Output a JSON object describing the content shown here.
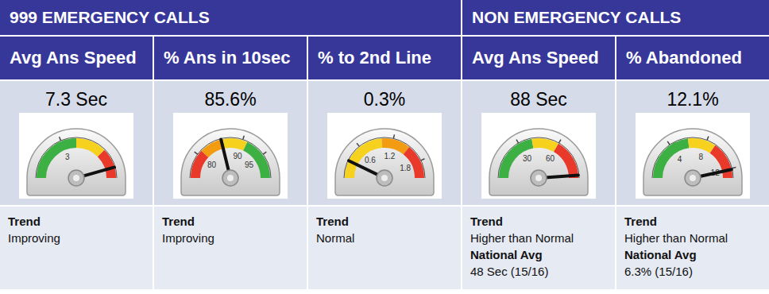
{
  "chart_data": [
    {
      "type": "gauge",
      "group": "999 EMERGENCY CALLS",
      "title": "Avg Ans Speed",
      "values": [
        7.3
      ],
      "value_labels": [
        "7.3 Sec"
      ],
      "ylim": [
        0,
        8
      ],
      "yticks": [
        3
      ],
      "bands": [
        {
          "from": 0,
          "to": 4,
          "color": "#3cb043"
        },
        {
          "from": 4,
          "to": 6,
          "color": "#f6d21e"
        },
        {
          "from": 6,
          "to": 8,
          "color": "#e8392b"
        }
      ],
      "annotations": [
        {
          "label": "Trend",
          "text": "Improving"
        }
      ]
    },
    {
      "type": "gauge",
      "group": "999 EMERGENCY CALLS",
      "title": "% Ans in 10sec",
      "values": [
        85.6
      ],
      "value_labels": [
        "85.6%"
      ],
      "ylim": [
        75,
        100
      ],
      "yticks": [
        80,
        90,
        95
      ],
      "bands": [
        {
          "from": 75,
          "to": 81,
          "color": "#e8392b"
        },
        {
          "from": 81,
          "to": 86,
          "color": "#f39c12"
        },
        {
          "from": 86,
          "to": 91,
          "color": "#f6d21e"
        },
        {
          "from": 91,
          "to": 100,
          "color": "#3cb043"
        }
      ],
      "annotations": [
        {
          "label": "Trend",
          "text": "Improving"
        }
      ]
    },
    {
      "type": "gauge",
      "group": "999 EMERGENCY CALLS",
      "title": "% to 2nd Line",
      "values": [
        0.3
      ],
      "value_labels": [
        "0.3%"
      ],
      "ylim": [
        0,
        2.1
      ],
      "yticks": [
        0.6,
        1.2,
        1.8
      ],
      "bands": [
        {
          "from": 0,
          "to": 1.0,
          "color": "#f6d21e"
        },
        {
          "from": 1.0,
          "to": 1.5,
          "color": "#f39c12"
        },
        {
          "from": 1.5,
          "to": 2.1,
          "color": "#e8392b"
        }
      ],
      "annotations": [
        {
          "label": "Trend",
          "text": "Normal"
        }
      ]
    },
    {
      "type": "gauge",
      "group": "NON EMERGENCY CALLS",
      "title": "Avg Ans Speed",
      "values": [
        88
      ],
      "value_labels": [
        "88 Sec"
      ],
      "ylim": [
        0,
        90
      ],
      "yticks": [
        30,
        60
      ],
      "bands": [
        {
          "from": 0,
          "to": 40,
          "color": "#3cb043"
        },
        {
          "from": 40,
          "to": 60,
          "color": "#f6d21e"
        },
        {
          "from": 60,
          "to": 90,
          "color": "#e8392b"
        }
      ],
      "annotations": [
        {
          "label": "Trend",
          "text": "Higher than Normal"
        },
        {
          "label": "National Avg",
          "text": "48 Sec (15/16)"
        }
      ]
    },
    {
      "type": "gauge",
      "group": "NON EMERGENCY CALLS",
      "title": "% Abandoned",
      "values": [
        12.1
      ],
      "value_labels": [
        "12.1%"
      ],
      "ylim": [
        0,
        13
      ],
      "yticks": [
        4,
        8,
        12
      ],
      "bands": [
        {
          "from": 0,
          "to": 6,
          "color": "#3cb043"
        },
        {
          "from": 6,
          "to": 9,
          "color": "#f6d21e"
        },
        {
          "from": 9,
          "to": 13,
          "color": "#e8392b"
        }
      ],
      "annotations": [
        {
          "label": "Trend",
          "text": "Higher than Normal"
        },
        {
          "label": "National Avg",
          "text": "6.3% (15/16)"
        }
      ]
    }
  ]
}
